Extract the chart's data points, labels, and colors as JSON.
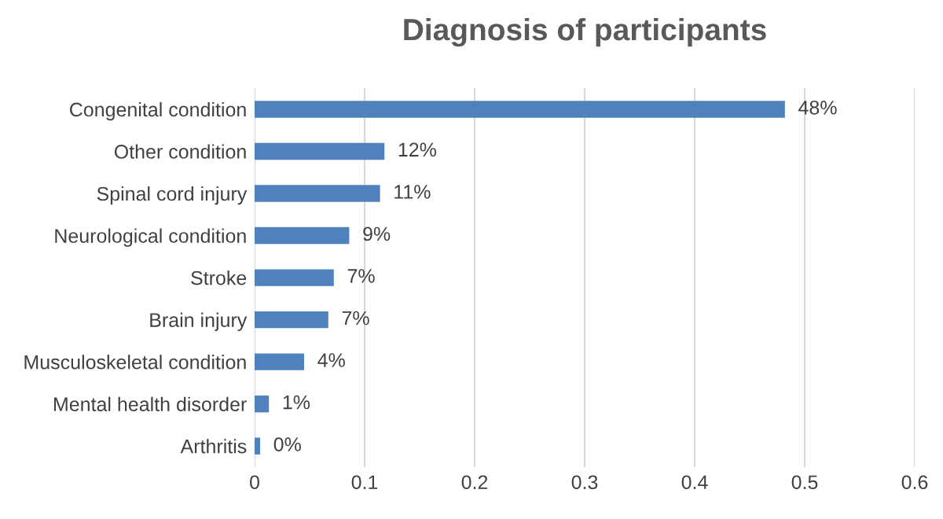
{
  "chart_data": {
    "type": "bar",
    "orientation": "horizontal",
    "title": "Diagnosis of participants",
    "categories": [
      "Congenital condition",
      "Other condition",
      "Spinal cord injury",
      "Neurological condition",
      "Stroke",
      "Brain injury",
      "Musculoskeletal condition",
      "Mental health disorder",
      "Arthritis"
    ],
    "values": [
      0.482,
      0.118,
      0.114,
      0.086,
      0.072,
      0.067,
      0.045,
      0.013,
      0.005
    ],
    "value_labels": [
      "48%",
      "12%",
      "11%",
      "9%",
      "7%",
      "7%",
      "4%",
      "1%",
      "0%"
    ],
    "color": "#4f81bd",
    "xlim": [
      0,
      0.6
    ],
    "xticks": [
      0,
      0.1,
      0.2,
      0.3,
      0.4,
      0.5,
      0.6
    ],
    "grid": "x",
    "legend": false
  }
}
